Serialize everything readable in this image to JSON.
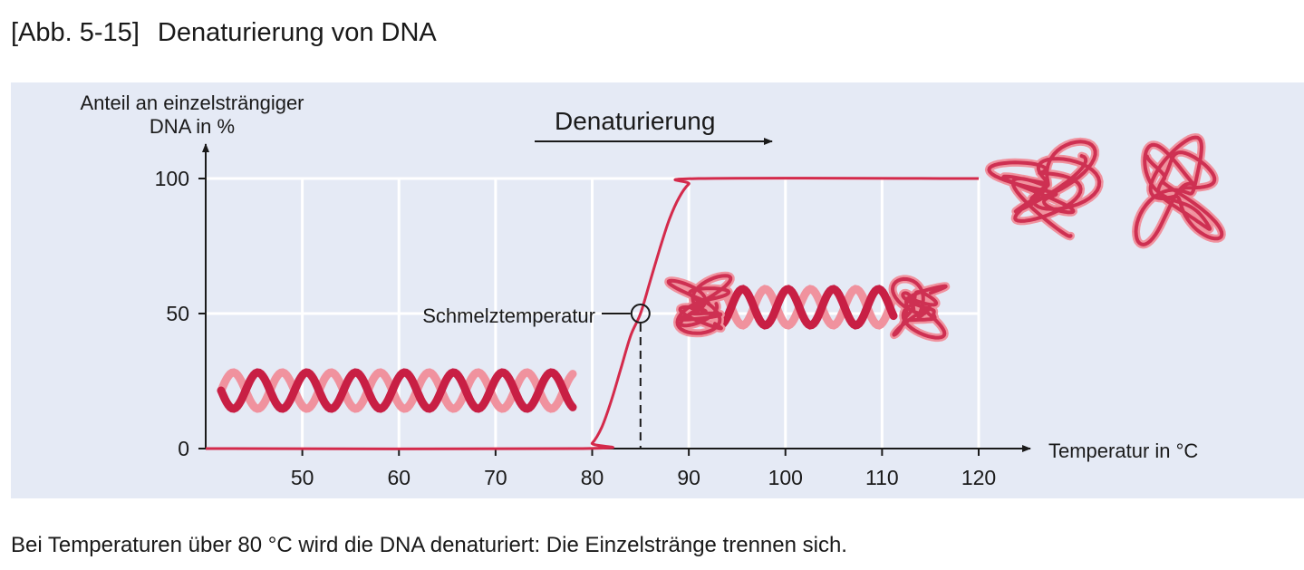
{
  "figure": {
    "number": "[Abb. 5-15]",
    "title": "Denaturierung von DNA",
    "caption": "Bei Temperaturen über 80 °C wird die DNA denaturiert: Die Einzelstränge trennen sich."
  },
  "colors": {
    "background": "#e5eaf5",
    "curve": "#d42a4b",
    "strand_dark": "#c81f44",
    "strand_light": "#f0929e",
    "axis": "#1a1a1a",
    "grid": "#ffffff"
  },
  "chart_data": {
    "type": "line",
    "title": "",
    "ylabel": "Anteil an einzelsträngiger DNA in %",
    "ylabel_lines": [
      "Anteil an einzelsträngiger",
      "DNA in %"
    ],
    "xlabel": "Temperatur in °C",
    "xlim": [
      40,
      120
    ],
    "ylim": [
      0,
      100
    ],
    "x_ticks": [
      50,
      60,
      70,
      80,
      90,
      100,
      110,
      120
    ],
    "y_ticks": [
      0,
      50,
      100
    ],
    "grid": true,
    "series": [
      {
        "x": [
          40,
          79,
          80,
          81,
          82,
          83,
          84,
          85,
          86,
          87,
          88,
          89,
          90,
          91,
          120
        ],
        "y": [
          0,
          0,
          2,
          8,
          18,
          30,
          42,
          50,
          62,
          74,
          85,
          93,
          98,
          100,
          100
        ]
      }
    ],
    "annotations": {
      "arrow_label": "Denaturierung",
      "melting_point_label": "Schmelztemperatur",
      "melting_point": {
        "x": 85,
        "y": 50
      }
    }
  }
}
